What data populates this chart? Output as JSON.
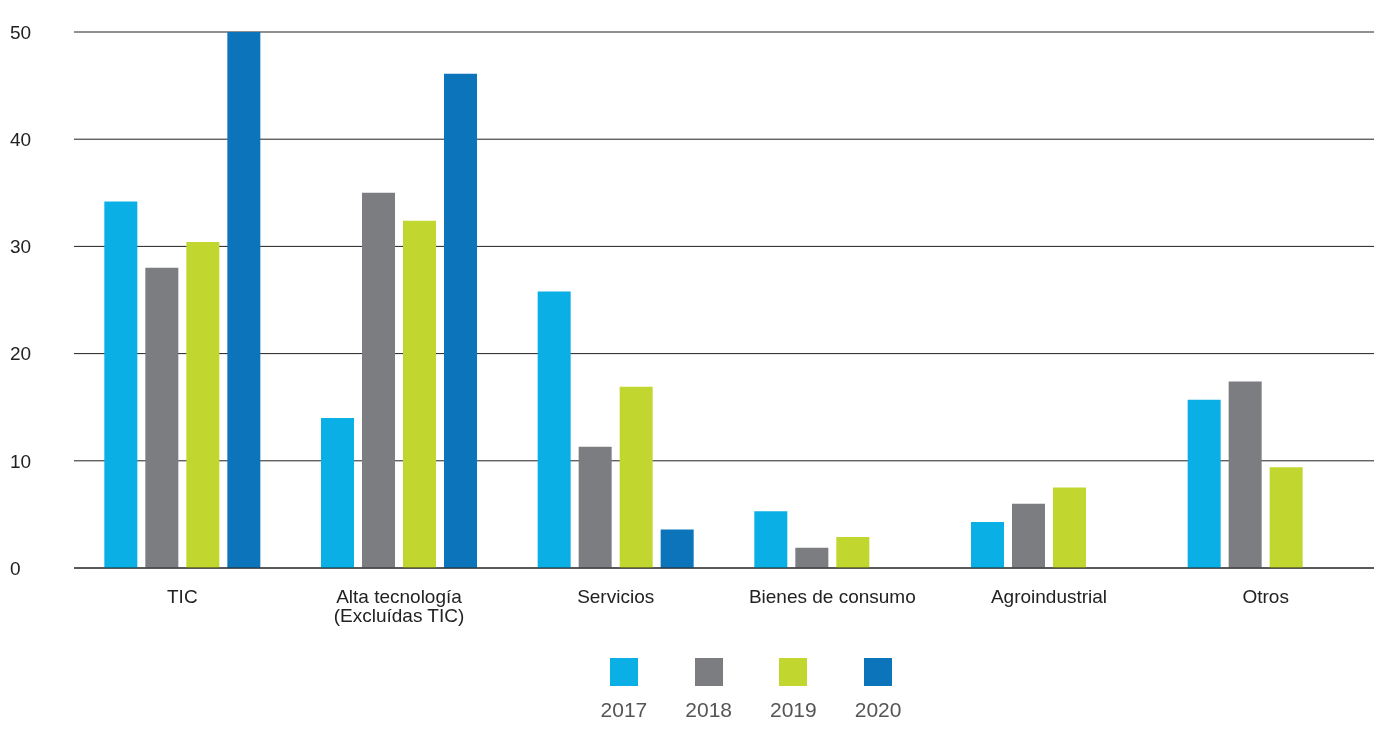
{
  "chart_data": {
    "type": "bar",
    "categories": [
      "TIC",
      "Alta tecnología (Excluídas TIC)",
      "Servicios",
      "Bienes de consumo",
      "Agroindustrial",
      "Otros"
    ],
    "series": [
      {
        "name": "2017",
        "color": "#0aafe6",
        "values": [
          34.2,
          14.0,
          25.8,
          5.3,
          4.3,
          15.7
        ]
      },
      {
        "name": "2018",
        "color": "#7c7d80",
        "values": [
          28.0,
          35.0,
          11.3,
          1.9,
          6.0,
          17.4
        ]
      },
      {
        "name": "2019",
        "color": "#c1d72f",
        "values": [
          30.4,
          32.4,
          16.9,
          2.9,
          7.5,
          9.4
        ]
      },
      {
        "name": "2020",
        "color": "#0c74bb",
        "values": [
          50.0,
          46.1,
          3.6,
          null,
          null,
          null
        ]
      }
    ],
    "ylim": [
      0,
      50
    ],
    "yticks": [
      0,
      10,
      20,
      30,
      40,
      50
    ],
    "grid": "y",
    "legend": "bottom"
  }
}
